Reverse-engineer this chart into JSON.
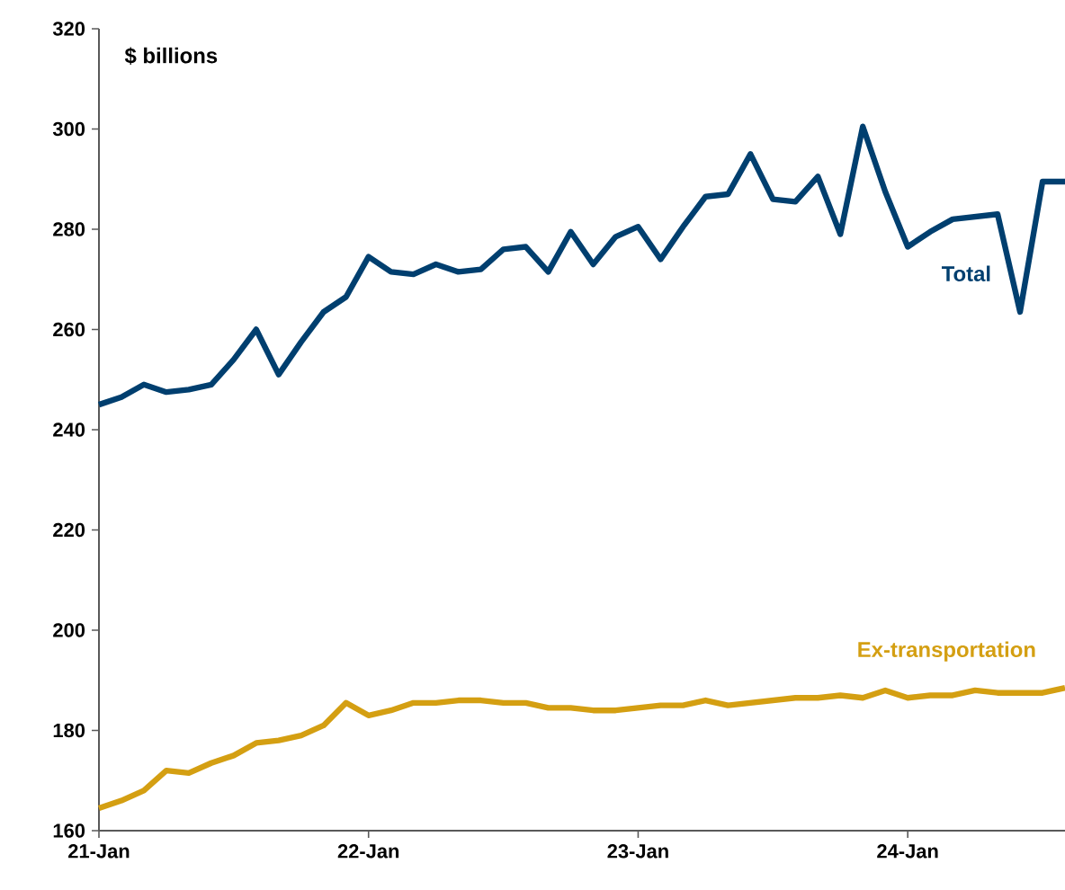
{
  "chart_data": {
    "type": "line",
    "ylabel": "$ billions",
    "x": [
      "2021-01",
      "2021-02",
      "2021-03",
      "2021-04",
      "2021-05",
      "2021-06",
      "2021-07",
      "2021-08",
      "2021-09",
      "2021-10",
      "2021-11",
      "2021-12",
      "2022-01",
      "2022-02",
      "2022-03",
      "2022-04",
      "2022-05",
      "2022-06",
      "2022-07",
      "2022-08",
      "2022-09",
      "2022-10",
      "2022-11",
      "2022-12",
      "2023-01",
      "2023-02",
      "2023-03",
      "2023-04",
      "2023-05",
      "2023-06",
      "2023-07",
      "2023-08",
      "2023-09",
      "2023-10",
      "2023-11",
      "2023-12",
      "2024-01",
      "2024-02",
      "2024-03",
      "2024-04",
      "2024-05",
      "2024-06",
      "2024-07",
      "2024-08"
    ],
    "series": [
      {
        "name": "Total",
        "color": "#003f6f",
        "values": [
          245,
          246.5,
          249,
          247.5,
          248,
          249,
          254,
          260,
          251,
          257.5,
          263.5,
          266.5,
          274.5,
          271.5,
          271,
          273,
          271.5,
          272,
          276,
          276.5,
          271.5,
          279.5,
          273,
          278.5,
          280.5,
          274,
          280.5,
          286.5,
          287,
          295,
          286,
          285.5,
          290.5,
          279,
          300.5,
          287.5,
          276.5,
          279.5,
          282,
          282.5,
          283,
          263.5,
          289.5,
          289.5
        ]
      },
      {
        "name": "Ex-transportation",
        "color": "#d49f12",
        "values": [
          164.5,
          166,
          168,
          172,
          171.5,
          173.5,
          175,
          177.5,
          178,
          179,
          181,
          185.5,
          183,
          184,
          185.5,
          185.5,
          186,
          186,
          185.5,
          185.5,
          184.5,
          184.5,
          184,
          184,
          184.5,
          185,
          185,
          186,
          185,
          185.5,
          186,
          186.5,
          186.5,
          187,
          186.5,
          188,
          186.5,
          187,
          187,
          188,
          187.5,
          187.5,
          187.5,
          188.5
        ]
      }
    ],
    "xlim": [
      "2021-01",
      "2024-08"
    ],
    "xticks": [
      {
        "value": "2021-01",
        "label": "21-Jan"
      },
      {
        "value": "2022-01",
        "label": "22-Jan"
      },
      {
        "value": "2023-01",
        "label": "23-Jan"
      },
      {
        "value": "2024-01",
        "label": "24-Jan"
      }
    ],
    "ylim": [
      160,
      320
    ],
    "yticks": [
      160,
      180,
      200,
      220,
      240,
      260,
      280,
      300,
      320
    ],
    "grid": false,
    "legend": false,
    "marker": "none",
    "line_style": "solid"
  }
}
